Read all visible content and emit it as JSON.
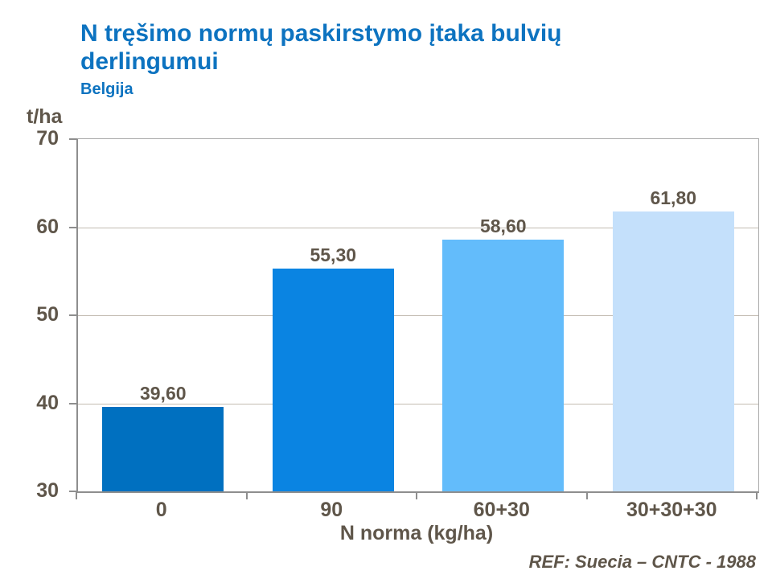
{
  "footer": {
    "text": "REF: Suecia – CNTC - 1988"
  },
  "colors": {
    "title_blue": "#0d73c0",
    "text_gray": "#5f564a",
    "grid_line": "#c3bcb2",
    "axis_line": "#8e8e8e",
    "plot_border": "#a9a9a9",
    "background": "#ffffff"
  },
  "chart_data": {
    "type": "bar",
    "title": "N tręšimo normų paskirstymo įtaka bulvių derlingumui",
    "subtitle": "Belgija",
    "xlabel": "N norma (kg/ha)",
    "ylabel": "t/ha",
    "categories": [
      "0",
      "90",
      "60+30",
      "30+30+30"
    ],
    "values": [
      39.6,
      55.3,
      58.6,
      61.8
    ],
    "value_labels": [
      "39,60",
      "55,30",
      "58,60",
      "61,80"
    ],
    "bar_colors": [
      "#0070c0",
      "#0a84e2",
      "#63bcfb",
      "#c4e0fb"
    ],
    "ylim": [
      30,
      70
    ],
    "yticks": [
      30,
      40,
      50,
      60,
      70
    ],
    "grid": true,
    "legend": false
  }
}
